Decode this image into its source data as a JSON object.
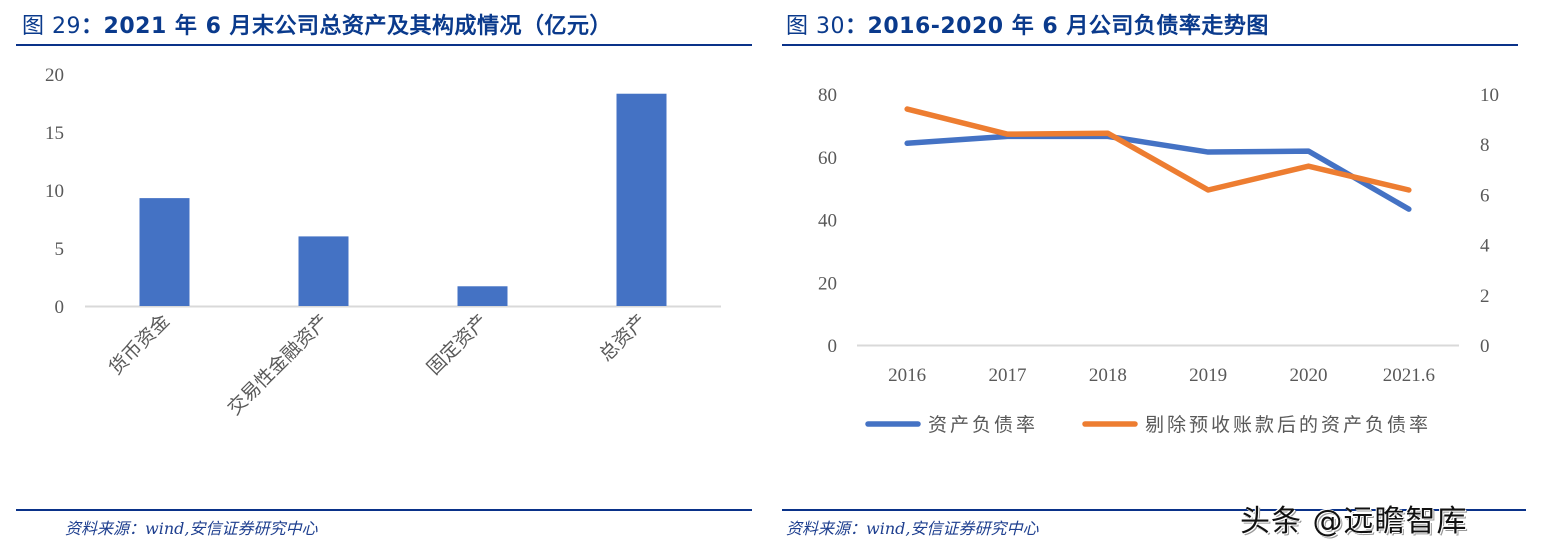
{
  "left": {
    "title_prefix": "图 29",
    "title_sep": "：",
    "title_main": "2021 年 6 月末公司总资产及其构成情况（亿元）",
    "source": "资料来源：wind,安信证券研究中心"
  },
  "right": {
    "title_prefix": "图 30",
    "title_sep": "：",
    "title_main": "2016-2020 年 6 月公司负债率走势图",
    "source": "资料来源：wind,安信证券研究中心"
  },
  "watermark": "头条 @远瞻智库",
  "colors": {
    "title": "#0a3a8c",
    "rule": "#0a3289",
    "bar": "#4472c4",
    "series1": "#4472c4",
    "series2": "#ed7d31",
    "axis": "#d9d9d9",
    "tick": "#595959"
  },
  "chart_data": [
    {
      "type": "bar",
      "title": "2021 年 6 月末公司总资产及其构成情况（亿元）",
      "categories": [
        "货币资金",
        "交易性金融资产",
        "固定资产",
        "总资产"
      ],
      "values": [
        9.3,
        6.0,
        1.7,
        18.3
      ],
      "xlabel": "",
      "ylabel": "",
      "ylim": [
        0,
        20
      ],
      "yticks": [
        "0",
        "5",
        "10",
        "15",
        "20"
      ],
      "grid": false,
      "legend": null
    },
    {
      "type": "line",
      "title": "2016-2020 年 6 月公司负债率走势图",
      "categories": [
        "2016",
        "2017",
        "2018",
        "2019",
        "2020",
        "2021.6"
      ],
      "series": [
        {
          "name": "资产负债率",
          "values": [
            64.3,
            66.5,
            66.5,
            61.5,
            61.8,
            43.3
          ]
        },
        {
          "name": "剔除预收账款后的资产负债率",
          "values": [
            75.2,
            67.2,
            67.5,
            49.4,
            57.0,
            49.4
          ]
        }
      ],
      "ylim": [
        0,
        80
      ],
      "yticks": [
        "0",
        "20",
        "40",
        "60",
        "80"
      ],
      "y2lim": [
        0,
        10
      ],
      "y2ticks": [
        "0",
        "2",
        "4",
        "6",
        "8",
        "10"
      ],
      "grid": false,
      "legend_position": "bottom"
    }
  ]
}
